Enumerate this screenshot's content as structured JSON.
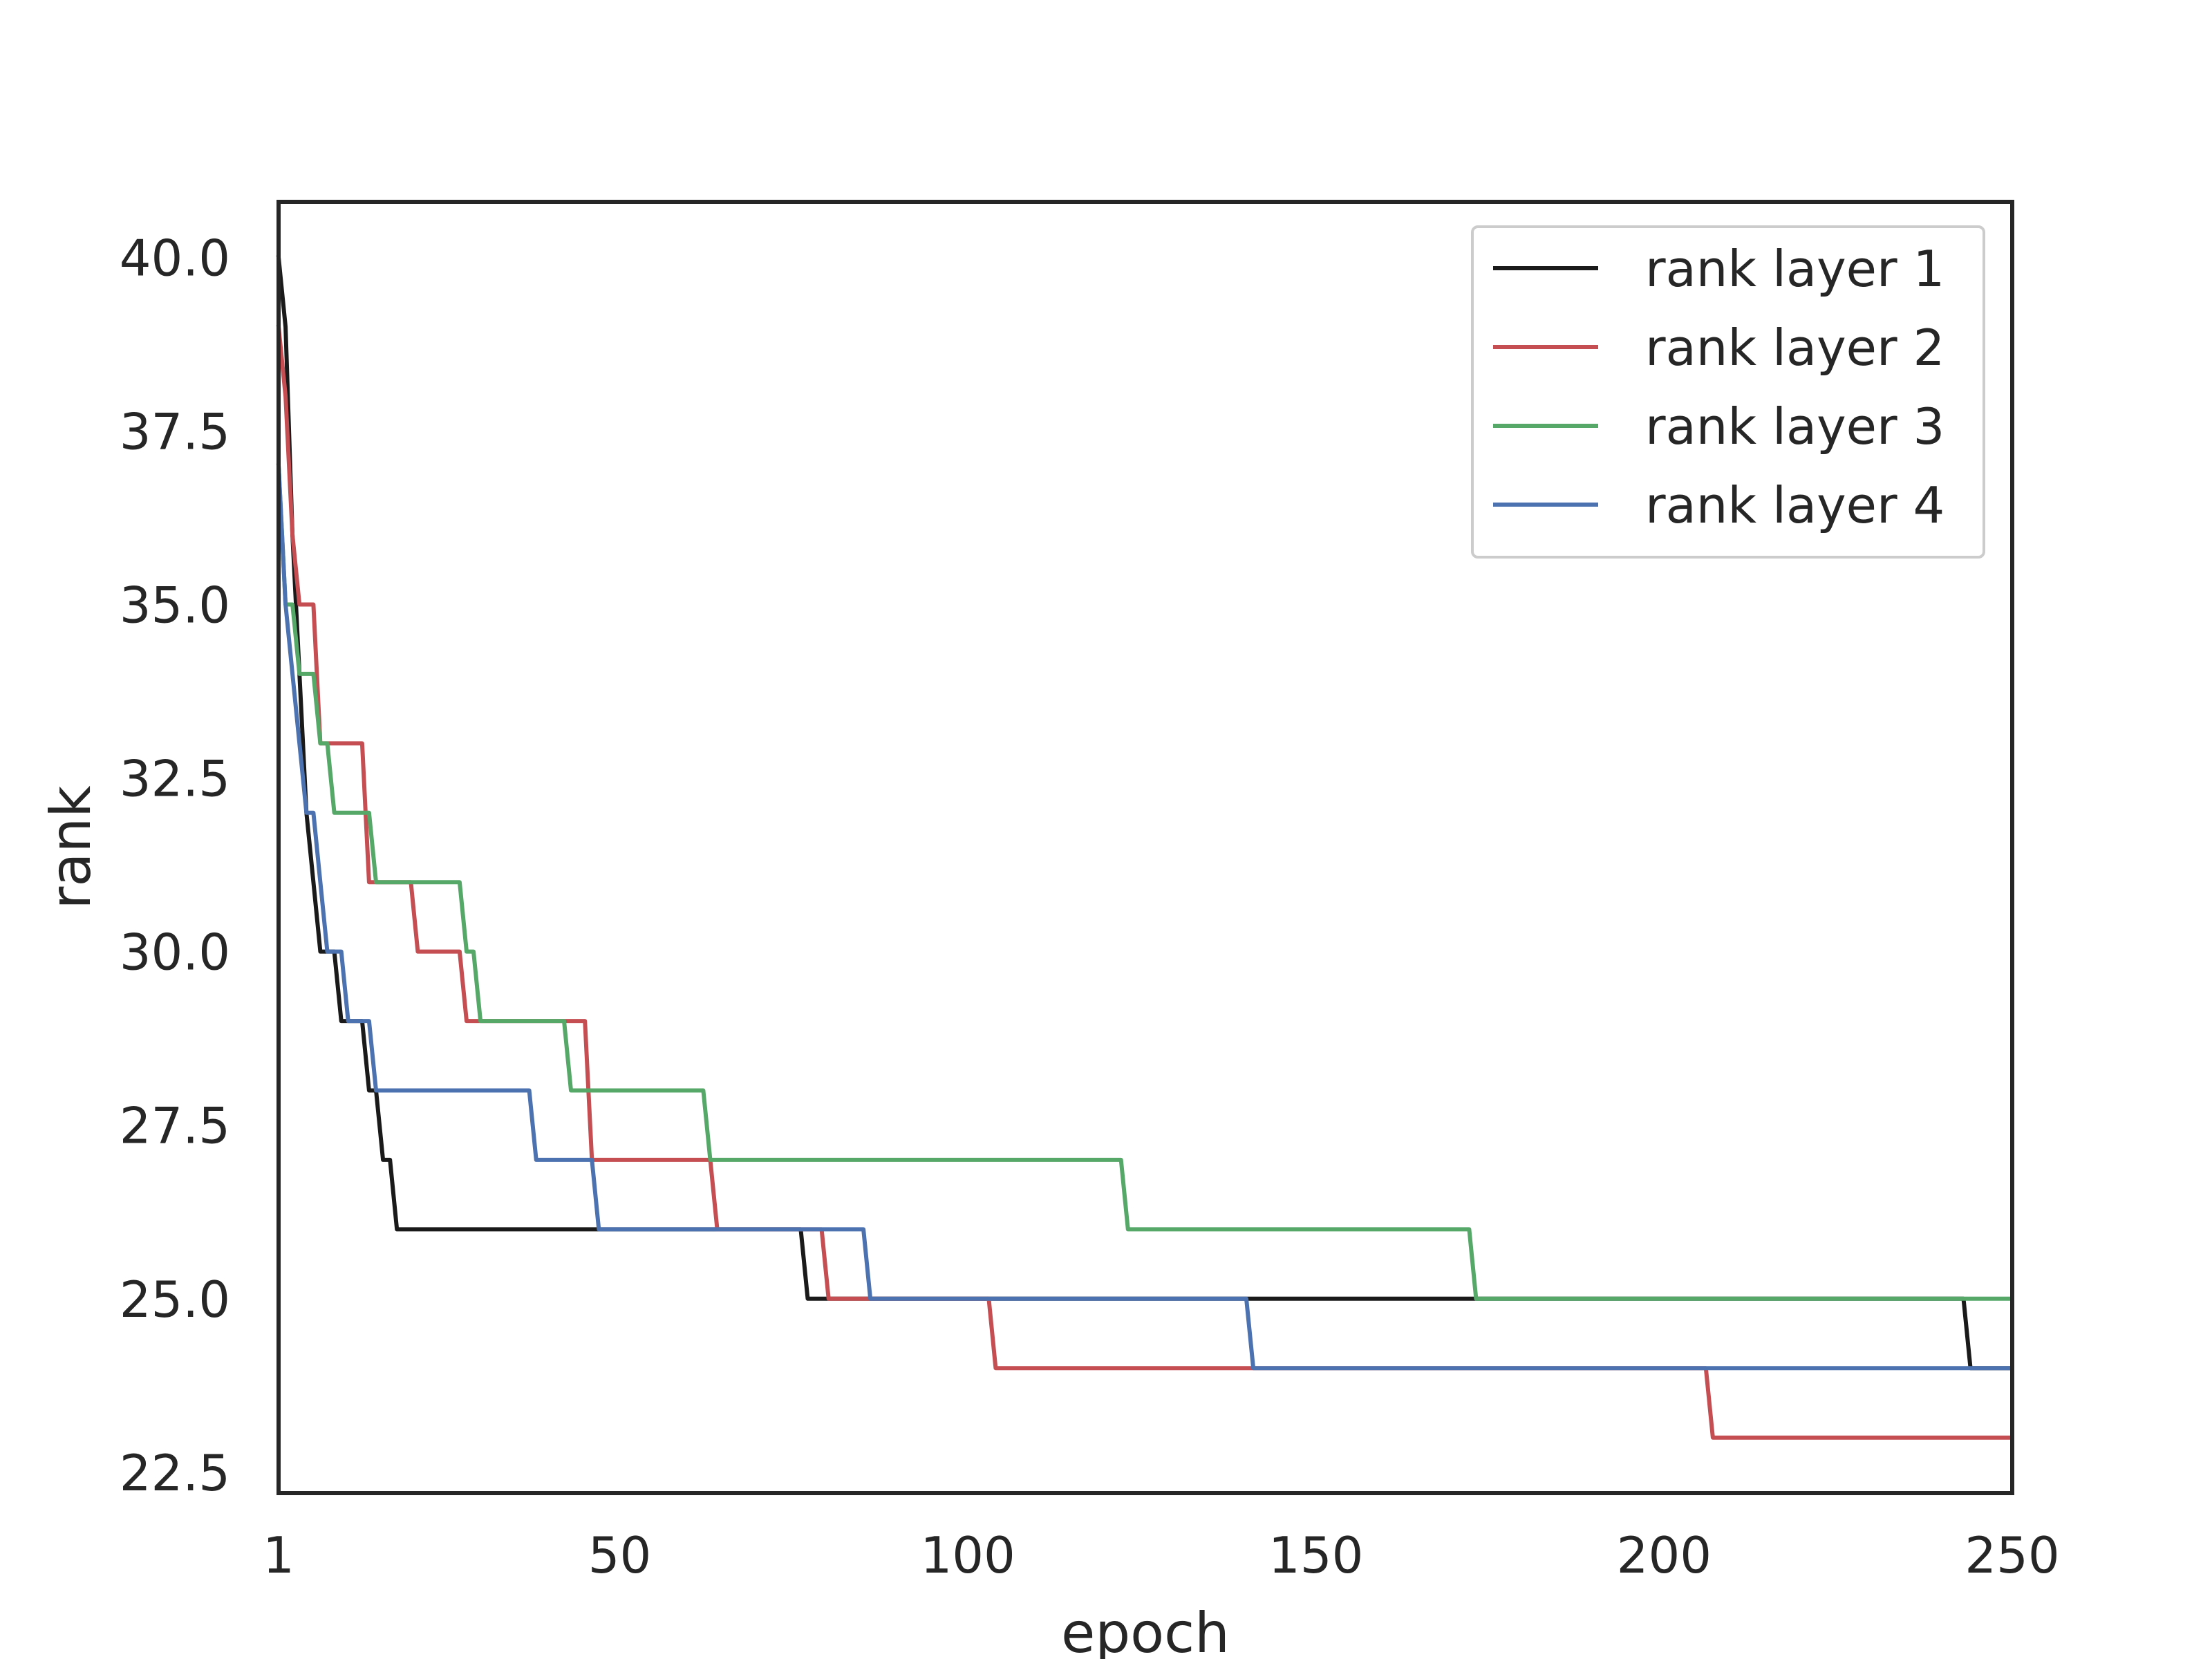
{
  "chart_data": {
    "type": "line",
    "title": "",
    "xlabel": "epoch",
    "ylabel": "rank",
    "xlim": [
      1,
      250
    ],
    "ylim": [
      22.2,
      40.8
    ],
    "x_ticks": [
      1,
      50,
      100,
      150,
      200,
      250
    ],
    "x_tick_labels": [
      "1",
      "50",
      "100",
      "150",
      "200",
      "250"
    ],
    "y_ticks": [
      22.5,
      25.0,
      27.5,
      30.0,
      32.5,
      35.0,
      37.5,
      40.0
    ],
    "y_tick_labels": [
      "22.5",
      "25.0",
      "27.5",
      "30.0",
      "32.5",
      "35.0",
      "37.5",
      "40.0"
    ],
    "grid": false,
    "legend_position": "top-right",
    "series": [
      {
        "name": "rank layer 1",
        "color": "#1a1a1a",
        "points": [
          [
            1,
            40
          ],
          [
            2,
            39
          ],
          [
            3,
            36
          ],
          [
            4,
            34
          ],
          [
            5,
            32
          ],
          [
            6,
            31
          ],
          [
            7,
            30
          ],
          [
            9,
            30
          ],
          [
            10,
            29
          ],
          [
            13,
            29
          ],
          [
            14,
            28
          ],
          [
            15,
            28
          ],
          [
            16,
            27
          ],
          [
            17,
            27
          ],
          [
            18,
            26
          ],
          [
            76,
            26
          ],
          [
            77,
            25
          ],
          [
            243,
            25
          ],
          [
            244,
            24
          ],
          [
            250,
            24
          ]
        ]
      },
      {
        "name": "rank layer 2",
        "color": "#c44e52",
        "points": [
          [
            1,
            39
          ],
          [
            2,
            38
          ],
          [
            3,
            36
          ],
          [
            4,
            35
          ],
          [
            6,
            35
          ],
          [
            7,
            33
          ],
          [
            13,
            33
          ],
          [
            14,
            31
          ],
          [
            20,
            31
          ],
          [
            21,
            30
          ],
          [
            27,
            30
          ],
          [
            28,
            29
          ],
          [
            45,
            29
          ],
          [
            46,
            27
          ],
          [
            63,
            27
          ],
          [
            64,
            26
          ],
          [
            79,
            26
          ],
          [
            80,
            25
          ],
          [
            103,
            25
          ],
          [
            104,
            24
          ],
          [
            206,
            24
          ],
          [
            207,
            23
          ],
          [
            250,
            23
          ]
        ]
      },
      {
        "name": "rank layer 3",
        "color": "#55a868",
        "points": [
          [
            1,
            37
          ],
          [
            2,
            35
          ],
          [
            3,
            35
          ],
          [
            4,
            34
          ],
          [
            6,
            34
          ],
          [
            7,
            33
          ],
          [
            8,
            33
          ],
          [
            9,
            32
          ],
          [
            14,
            32
          ],
          [
            15,
            31
          ],
          [
            27,
            31
          ],
          [
            28,
            30
          ],
          [
            29,
            30
          ],
          [
            30,
            29
          ],
          [
            42,
            29
          ],
          [
            43,
            28
          ],
          [
            62,
            28
          ],
          [
            63,
            27
          ],
          [
            122,
            27
          ],
          [
            123,
            26
          ],
          [
            172,
            26
          ],
          [
            173,
            25
          ],
          [
            250,
            25
          ]
        ]
      },
      {
        "name": "rank layer 4",
        "color": "#4c72b0",
        "points": [
          [
            1,
            37
          ],
          [
            2,
            35
          ],
          [
            3,
            34
          ],
          [
            4,
            33
          ],
          [
            5,
            32
          ],
          [
            6,
            32
          ],
          [
            7,
            31
          ],
          [
            8,
            30
          ],
          [
            10,
            30
          ],
          [
            11,
            29
          ],
          [
            14,
            29
          ],
          [
            15,
            28
          ],
          [
            37,
            28
          ],
          [
            38,
            27
          ],
          [
            46,
            27
          ],
          [
            47,
            26
          ],
          [
            85,
            26
          ],
          [
            86,
            25
          ],
          [
            140,
            25
          ],
          [
            141,
            24
          ],
          [
            250,
            24
          ]
        ]
      }
    ]
  }
}
